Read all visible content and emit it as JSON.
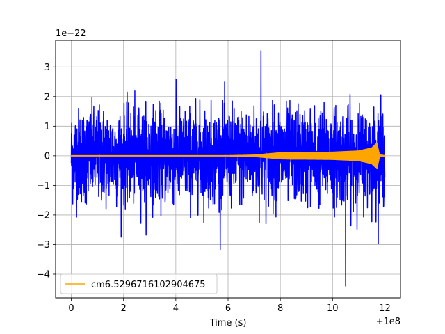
{
  "chart_data": {
    "type": "line",
    "title": "",
    "xlabel": "Time (s)",
    "ylabel": "",
    "x_offset_label": "+1e8",
    "y_scale_label": "1e−22",
    "xlim": [
      -0.6,
      12.6
    ],
    "ylim": [
      -4.8,
      3.9
    ],
    "x_ticks": [
      0,
      2,
      4,
      6,
      8,
      10,
      12
    ],
    "x_tick_labels": [
      "0",
      "2",
      "4",
      "6",
      "8",
      "10",
      "12"
    ],
    "y_ticks": [
      -4,
      -3,
      -2,
      -1,
      0,
      1,
      2,
      3
    ],
    "y_tick_labels": [
      "−4",
      "−3",
      "−2",
      "−1",
      "0",
      "1",
      "2",
      "3"
    ],
    "grid": true,
    "legend_position": "lower-left",
    "series": [
      {
        "label": "",
        "color": "#0000ff",
        "style": "noise",
        "x_range": [
          0,
          12
        ],
        "typical_amplitude": 1.5,
        "extreme_max": 3.55,
        "extreme_min": -4.4
      },
      {
        "label": "cm6.5296716102904675",
        "color": "#ffa500",
        "style": "chirp",
        "x_range": [
          0,
          12
        ],
        "envelope": [
          [
            0,
            0.02
          ],
          [
            6.0,
            0.02
          ],
          [
            7.0,
            0.04
          ],
          [
            7.5,
            0.08
          ],
          [
            8.0,
            0.12
          ],
          [
            8.5,
            0.13
          ],
          [
            9.0,
            0.13
          ],
          [
            10.0,
            0.14
          ],
          [
            11.0,
            0.18
          ],
          [
            11.5,
            0.28
          ],
          [
            11.7,
            0.45
          ],
          [
            11.8,
            0.05
          ],
          [
            12.0,
            0.02
          ]
        ]
      }
    ]
  }
}
